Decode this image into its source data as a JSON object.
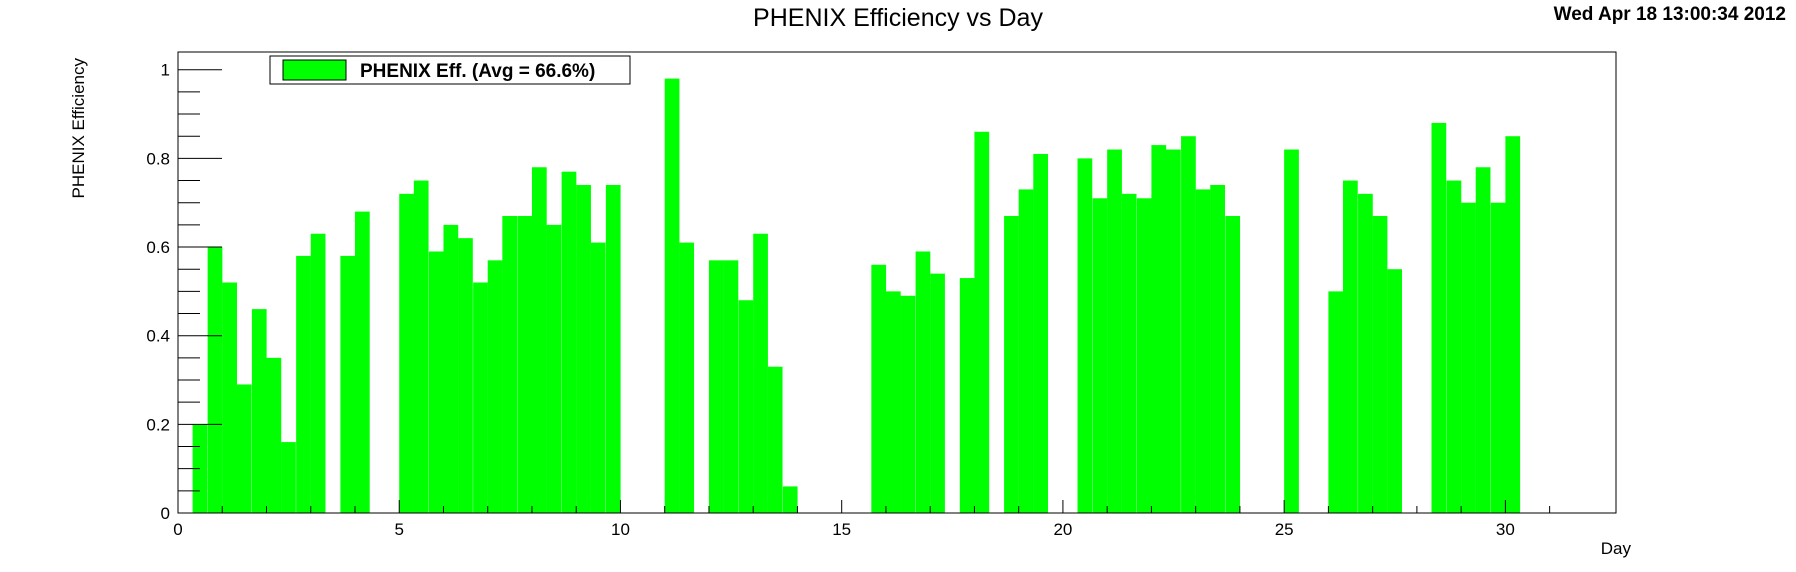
{
  "header": {
    "title": "PHENIX Efficiency vs Day",
    "timestamp": "Wed Apr 18 13:00:34 2012"
  },
  "chart_data": {
    "type": "bar",
    "title": "PHENIX Efficiency vs Day",
    "xlabel": "Day",
    "ylabel": "PHENIX Efficiency",
    "xlim": [
      0,
      32.5
    ],
    "ylim": [
      0,
      1.04
    ],
    "x_ticks": [
      0,
      5,
      10,
      15,
      20,
      25,
      30
    ],
    "y_ticks": [
      0,
      0.2,
      0.4,
      0.6,
      0.8,
      1
    ],
    "y_tick_labels": [
      "0",
      "0.2",
      "0.4",
      "0.6",
      "0.8",
      "1"
    ],
    "bin_width": 0.333,
    "color": "#00ff00",
    "legend": {
      "label": "PHENIX Eff. (Avg =  66.6%)",
      "placement": "top-left"
    },
    "series": [
      {
        "name": "PHENIX Eff. (Avg =  66.6%)",
        "x": [
          0.33,
          0.67,
          1.0,
          1.33,
          1.67,
          2.0,
          2.33,
          2.67,
          3.0,
          3.67,
          4.0,
          5.0,
          5.33,
          5.67,
          6.0,
          6.33,
          6.67,
          7.0,
          7.33,
          7.67,
          8.0,
          8.33,
          8.67,
          9.0,
          9.33,
          9.67,
          11.0,
          11.33,
          12.0,
          12.33,
          12.67,
          13.0,
          13.33,
          13.67,
          15.67,
          16.0,
          16.33,
          16.67,
          17.0,
          17.67,
          18.0,
          18.67,
          19.0,
          19.33,
          20.33,
          20.67,
          21.0,
          21.33,
          21.67,
          22.0,
          22.33,
          22.67,
          23.0,
          23.33,
          23.67,
          25.0,
          26.0,
          26.33,
          26.67,
          27.0,
          27.33,
          28.33,
          28.67,
          29.0,
          29.33,
          29.67,
          30.0
        ],
        "values": [
          0.2,
          0.6,
          0.52,
          0.29,
          0.46,
          0.35,
          0.16,
          0.58,
          0.63,
          0.58,
          0.68,
          0.72,
          0.75,
          0.59,
          0.65,
          0.62,
          0.52,
          0.57,
          0.67,
          0.67,
          0.78,
          0.65,
          0.77,
          0.74,
          0.61,
          0.74,
          0.98,
          0.61,
          0.57,
          0.57,
          0.48,
          0.63,
          0.33,
          0.06,
          0.56,
          0.5,
          0.49,
          0.59,
          0.54,
          0.53,
          0.86,
          0.67,
          0.73,
          0.81,
          0.8,
          0.71,
          0.82,
          0.72,
          0.71,
          0.83,
          0.82,
          0.85,
          0.73,
          0.74,
          0.67,
          0.82,
          0.5,
          0.75,
          0.72,
          0.67,
          0.55,
          0.88,
          0.75,
          0.7,
          0.78,
          0.7,
          0.85
        ]
      }
    ]
  }
}
